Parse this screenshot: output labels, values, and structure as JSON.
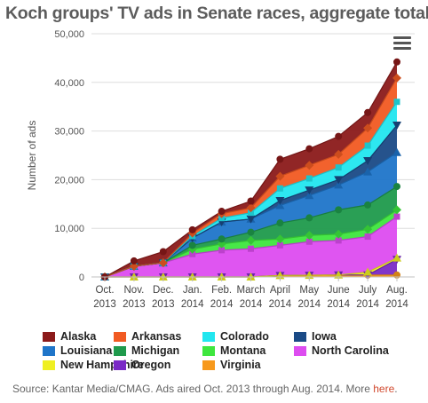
{
  "source": {
    "text": "Source: Kantar Media/CMAG. Ads aired Oct. 2013 through Aug. 2014. More",
    "link": "here",
    "end": "."
  },
  "colors": {
    "Alaska": "#8b1a1a",
    "Arkansas": "#f15a22",
    "Colorado": "#22e6ef",
    "Iowa": "#1a4a86",
    "Louisiana": "#1f75c9",
    "Michigan": "#1f9a4c",
    "Montana": "#3ee63e",
    "North Carolina": "#dd4cf0",
    "New Hampshire": "#efef22",
    "Oregon": "#7a2ac6",
    "Virginia": "#f7991c"
  },
  "chart_data": {
    "type": "area",
    "stacked": true,
    "title": "Koch groups' TV ads in Senate races, aggregate totals",
    "ylabel": "Number of ads",
    "xlabel": "",
    "ylim": [
      0,
      50000
    ],
    "yticks": [
      "0",
      "10,000",
      "20,000",
      "30,000",
      "40,000",
      "50,000"
    ],
    "yticks_values": [
      0,
      10000,
      20000,
      30000,
      40000,
      50000
    ],
    "grid": true,
    "legend_position": "bottom",
    "categories": [
      [
        "Oct.",
        "2013"
      ],
      [
        "Nov.",
        "2013"
      ],
      [
        "Dec.",
        "2013"
      ],
      [
        "Jan.",
        "2014"
      ],
      [
        "Feb.",
        "2014"
      ],
      [
        "March",
        "2014"
      ],
      [
        "April",
        "2014"
      ],
      [
        "May",
        "2014"
      ],
      [
        "June",
        "2014"
      ],
      [
        "July",
        "2014"
      ],
      [
        "Aug.",
        "2014"
      ]
    ],
    "series": [
      {
        "name": "Virginia",
        "marker": "circle",
        "values": [
          0,
          0,
          0,
          0,
          0,
          0,
          300,
          350,
          400,
          400,
          400
        ]
      },
      {
        "name": "Oregon",
        "marker": "triangle-down",
        "values": [
          0,
          0,
          0,
          0,
          0,
          0,
          0,
          0,
          0,
          0,
          3200
        ]
      },
      {
        "name": "New Hampshire",
        "marker": "triangle",
        "values": [
          0,
          0,
          0,
          0,
          0,
          0,
          0,
          0,
          0,
          600,
          300
        ]
      },
      {
        "name": "North Carolina",
        "marker": "square",
        "values": [
          0,
          2200,
          2900,
          4700,
          5500,
          5800,
          6200,
          6900,
          7100,
          7300,
          8500
        ]
      },
      {
        "name": "Montana",
        "marker": "diamond",
        "values": [
          0,
          0,
          0,
          1000,
          1300,
          1700,
          1300,
          1300,
          1300,
          1500,
          1400
        ]
      },
      {
        "name": "Michigan",
        "marker": "circle",
        "values": [
          0,
          0,
          0,
          800,
          1000,
          1700,
          3300,
          3600,
          5000,
          5000,
          4800
        ]
      },
      {
        "name": "Louisiana",
        "marker": "triangle",
        "values": [
          0,
          0,
          0,
          1500,
          3500,
          2700,
          3600,
          4600,
          5100,
          6800,
          7000
        ]
      },
      {
        "name": "Iowa",
        "marker": "triangle-down",
        "values": [
          0,
          0,
          0,
          0,
          0,
          0,
          1000,
          1100,
          1100,
          2300,
          5600
        ]
      },
      {
        "name": "Colorado",
        "marker": "square",
        "values": [
          0,
          0,
          0,
          400,
          800,
          1300,
          2500,
          2400,
          2500,
          3100,
          4800
        ]
      },
      {
        "name": "Arkansas",
        "marker": "diamond",
        "values": [
          0,
          0,
          0,
          600,
          900,
          1000,
          2500,
          2700,
          2700,
          3600,
          4900
        ]
      },
      {
        "name": "Alaska",
        "marker": "circle",
        "values": [
          0,
          1100,
          2300,
          700,
          500,
          1400,
          3500,
          3400,
          3700,
          3200,
          3300
        ]
      }
    ],
    "legend": [
      "Alaska",
      "Arkansas",
      "Colorado",
      "Iowa",
      "Louisiana",
      "Michigan",
      "Montana",
      "North Carolina",
      "New Hampshire",
      "Oregon",
      "Virginia"
    ]
  }
}
